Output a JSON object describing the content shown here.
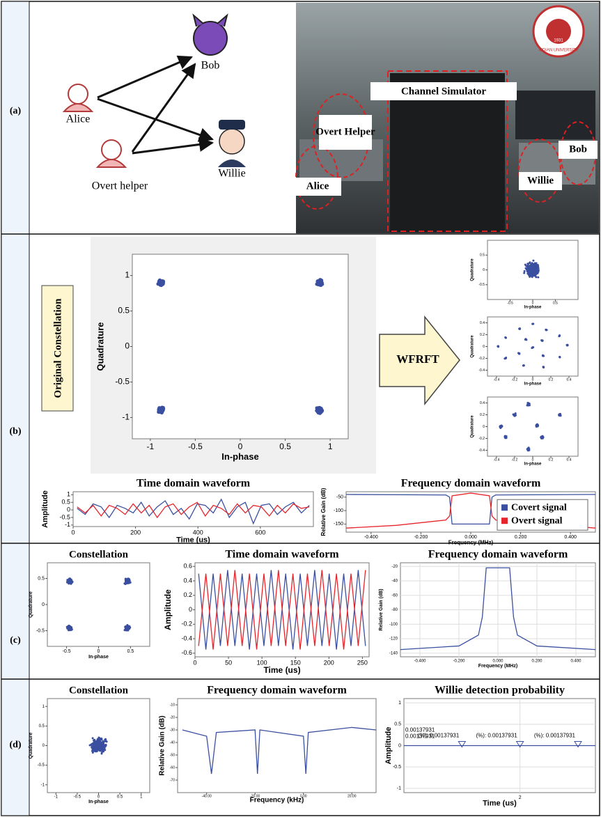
{
  "panel_labels": [
    "(a)",
    "(b)",
    "(c)",
    "(d)"
  ],
  "panel_a": {
    "nodes": [
      "Bob",
      "Alice",
      "Willie",
      "Overt helper"
    ],
    "photo_labels": [
      "Channel Simulator",
      "Overt Helper",
      "Alice",
      "Willie",
      "Bob"
    ],
    "logo": [
      "XIDIAN UNIVERSITY",
      "1931"
    ]
  },
  "panel_b": {
    "side_label": "Original Constellation",
    "arrow_label": "WFRFT",
    "charts": [
      {
        "type": "scatter",
        "xlabel": "In-phase",
        "ylabel": "Quadrature",
        "xlim": [
          -1.2,
          1.2
        ],
        "ylim": [
          -1.3,
          1.3
        ],
        "xticks": [
          -1,
          -0.5,
          0,
          0.5,
          1
        ],
        "yticks": [
          -1,
          -0.5,
          0,
          0.5,
          1
        ],
        "color": "#3a4fa0",
        "centers": [
          [
            -0.88,
            0.9
          ],
          [
            0.88,
            0.9
          ],
          [
            -0.88,
            -0.9
          ],
          [
            0.88,
            -0.9
          ]
        ]
      },
      {
        "type": "scatter",
        "xlabel": "In-phase",
        "ylabel": "Quadrature",
        "xlim": [
          -1,
          1
        ],
        "ylim": [
          -1,
          1
        ],
        "xticks": [
          -0.5,
          0,
          0.5
        ],
        "yticks": [
          -0.5,
          0,
          0.5
        ],
        "color": "#3a4fa0",
        "centers": [
          [
            0,
            0
          ]
        ]
      },
      {
        "type": "scatter",
        "xlabel": "In-phase",
        "ylabel": "Quadrature",
        "xlim": [
          -0.5,
          0.5
        ],
        "ylim": [
          -0.5,
          0.5
        ],
        "xticks": [
          -0.4,
          -0.2,
          0,
          0.2,
          0.4
        ],
        "yticks": [
          -0.4,
          -0.2,
          0,
          0.2,
          0.4
        ],
        "color": "#3a4fa0",
        "centers": [
          [
            0,
            0.38
          ],
          [
            -0.15,
            0.3
          ],
          [
            0.15,
            0.28
          ],
          [
            -0.3,
            0.15
          ],
          [
            0.3,
            0.18
          ],
          [
            -0.08,
            0.12
          ],
          [
            0.1,
            0.1
          ],
          [
            -0.38,
            0
          ],
          [
            0.38,
            0.02
          ],
          [
            0,
            -0.02
          ],
          [
            -0.15,
            -0.12
          ],
          [
            0.12,
            -0.15
          ],
          [
            -0.3,
            -0.2
          ],
          [
            0.3,
            -0.18
          ],
          [
            -0.1,
            -0.32
          ],
          [
            0.12,
            -0.35
          ]
        ]
      },
      {
        "type": "scatter",
        "xlabel": "In-phase",
        "ylabel": "Quadrature",
        "xlim": [
          -0.5,
          0.5
        ],
        "ylim": [
          -0.5,
          0.5
        ],
        "xticks": [
          -0.4,
          -0.2,
          0,
          0.2,
          0.4
        ],
        "yticks": [
          -0.4,
          -0.2,
          0,
          0.2,
          0.4
        ],
        "color": "#3a4fa0",
        "centers": [
          [
            -0.05,
            0.38
          ],
          [
            -0.2,
            0.2
          ],
          [
            0.3,
            0.2
          ],
          [
            -0.35,
            0
          ],
          [
            0.05,
            0.02
          ],
          [
            -0.3,
            -0.18
          ],
          [
            0.1,
            -0.18
          ],
          [
            -0.05,
            -0.38
          ]
        ]
      },
      {
        "type": "line",
        "title": "Time domain waveform",
        "xlabel": "Time  (us)",
        "ylabel": "Amplitude",
        "xlim": [
          0,
          770
        ],
        "ylim": [
          -1.1,
          1.2
        ],
        "xticks": [
          0,
          200,
          400,
          600
        ],
        "yticks": [
          -1,
          -0.5,
          0,
          0.5,
          1
        ],
        "series": [
          {
            "color": "#3a4fa0",
            "values": [
              0.1,
              -0.3,
              0.4,
              0.2,
              -0.5,
              0.3,
              0.1,
              -0.2,
              0.5,
              -0.4,
              0.2,
              0.6,
              -0.3,
              0.1,
              -0.6,
              0.4,
              0.3,
              -0.2,
              0.7,
              -0.5,
              0.2,
              0.5,
              -0.9,
              0.3,
              0.4,
              -0.3,
              0.2,
              0.5,
              -0.2,
              0.3
            ]
          },
          {
            "color": "#e8242b",
            "values": [
              0.2,
              -0.2,
              0.3,
              -0.4,
              0.3,
              0.1,
              -0.3,
              0.4,
              -0.2,
              0.3,
              -0.5,
              0.2,
              0.4,
              -0.3,
              0.2,
              0.5,
              -0.4,
              0.3,
              0.1,
              -0.3,
              0.4,
              -0.2,
              0.3,
              0.2,
              -0.4,
              0.3,
              -0.2,
              0.4,
              0.1,
              0.2
            ]
          }
        ]
      },
      {
        "type": "line",
        "title": "Frequency domain waveform",
        "xlabel": "Frequency (MHz)",
        "ylabel": "Relative Gain (dB)",
        "xlim": [
          -0.5,
          0.5
        ],
        "ylim": [
          -180,
          -30
        ],
        "xticks": [
          {
            "value": -0.4,
            "label": "-0.400"
          },
          {
            "value": -0.2,
            "label": "-0.200"
          },
          {
            "value": 0,
            "label": "0.000"
          },
          {
            "value": 0.2,
            "label": "0.200"
          },
          {
            "value": 0.4,
            "label": "0.400"
          }
        ],
        "yticks": [
          -50,
          -100,
          -150
        ],
        "legend": "right",
        "series": [
          {
            "name": "Covert signal",
            "color": "#3a4fa0",
            "x": [
              -0.5,
              -0.1,
              -0.085,
              -0.075,
              0.075,
              0.085,
              0.1,
              0.5
            ],
            "values": [
              -40,
              -42,
              -50,
              -150,
              -150,
              -50,
              -42,
              -40
            ]
          },
          {
            "name": "Overt signal",
            "color": "#e8242b",
            "x": [
              -0.5,
              -0.3,
              -0.1,
              -0.085,
              -0.075,
              0,
              0.075,
              0.085,
              0.1,
              0.3,
              0.5
            ],
            "values": [
              -165,
              -155,
              -135,
              -120,
              -45,
              -35,
              -45,
              -120,
              -135,
              -150,
              -165
            ]
          }
        ]
      }
    ]
  },
  "panel_c": {
    "charts": [
      {
        "type": "scatter",
        "title": "Constellation",
        "xlabel": "In-phase",
        "ylabel": "Quadrature",
        "xlim": [
          -0.8,
          0.8
        ],
        "ylim": [
          -0.8,
          0.8
        ],
        "xticks": [
          -0.5,
          0,
          0.5
        ],
        "yticks": [
          -0.5,
          0,
          0.5
        ],
        "color": "#3a4fa0",
        "centers": [
          [
            -0.45,
            0.45
          ],
          [
            0.45,
            0.45
          ],
          [
            -0.45,
            -0.45
          ],
          [
            0.45,
            -0.45
          ]
        ]
      },
      {
        "type": "line",
        "title": "Time domain waveform",
        "xlabel": "Time  (us)",
        "ylabel": "Amplitude",
        "xlim": [
          0,
          260
        ],
        "ylim": [
          -0.65,
          0.65
        ],
        "xticks": [
          0,
          50,
          100,
          150,
          200,
          250
        ],
        "yticks": [
          -0.6,
          -0.4,
          -0.2,
          0,
          0.2,
          0.4,
          0.6
        ],
        "series": [
          {
            "color": "#3a4fa0",
            "values": [
              0.5,
              -0.55,
              0.5,
              -0.5,
              0.55,
              -0.5,
              0.5,
              -0.55,
              0.5,
              -0.5,
              0.55,
              -0.5,
              0.5,
              -0.55,
              0.5,
              -0.5,
              0.55,
              -0.5,
              0.5,
              -0.55,
              0.5,
              -0.5,
              0.55,
              -0.5
            ]
          },
          {
            "color": "#e8242b",
            "values": [
              -0.5,
              0.5,
              -0.55,
              0.5,
              -0.5,
              0.55,
              -0.5,
              0.5,
              -0.55,
              0.5,
              -0.5,
              0.55,
              -0.5,
              0.5,
              -0.55,
              0.5,
              -0.5,
              0.55,
              -0.5,
              0.5,
              -0.55,
              0.5,
              -0.5,
              0.55
            ]
          }
        ]
      },
      {
        "type": "line",
        "title": "Frequency domain waveform",
        "xlabel": "Frequency  (MHz)",
        "ylabel": "Relative Gain (dB)",
        "xlim": [
          -0.5,
          0.5
        ],
        "ylim": [
          -145,
          -15
        ],
        "grid": true,
        "xticks": [
          {
            "value": -0.4,
            "label": "-0.400"
          },
          {
            "value": -0.2,
            "label": "-0.200"
          },
          {
            "value": 0,
            "label": "0.000"
          },
          {
            "value": 0.2,
            "label": "0.200"
          },
          {
            "value": 0.4,
            "label": "0.400"
          }
        ],
        "yticks": [
          -20,
          -40,
          -60,
          -80,
          -100,
          -120,
          -140
        ],
        "series": [
          {
            "color": "#3a4fa0",
            "x": [
              -0.5,
              -0.2,
              -0.1,
              -0.08,
              -0.06,
              0.06,
              0.08,
              0.1,
              0.2,
              0.5
            ],
            "values": [
              -135,
              -130,
              -115,
              -90,
              -22,
              -22,
              -90,
              -115,
              -130,
              -135
            ]
          }
        ]
      }
    ]
  },
  "panel_d": {
    "charts": [
      {
        "type": "scatter",
        "title": "Constellation",
        "xlabel": "In-phase",
        "ylabel": "Quadrature",
        "xlim": [
          -1.2,
          1.2
        ],
        "ylim": [
          -1.2,
          1.2
        ],
        "xticks": [
          -1,
          -0.5,
          0,
          0.5,
          1
        ],
        "yticks": [
          -1,
          -0.5,
          0,
          0.5,
          1
        ],
        "color": "#3a4fa0",
        "centers": [
          [
            0,
            0
          ]
        ]
      },
      {
        "type": "line",
        "title": "Frequency domain waveform",
        "xlabel": "Frequency  (kHz)",
        "ylabel": "Relative Gain (dB)",
        "xlim": [
          -52,
          30
        ],
        "ylim": [
          -80,
          -5
        ],
        "xticks": [
          {
            "value": -40,
            "label": "-40.00"
          },
          {
            "value": -20,
            "label": "-20.00"
          },
          {
            "value": 0,
            "label": "0.00"
          },
          {
            "value": 20,
            "label": "20.00"
          }
        ],
        "yticks": [
          -10,
          -20,
          -30,
          -40,
          -50,
          -60,
          -70
        ],
        "series": [
          {
            "color": "#3a4fa0",
            "x": [
              -50,
              -40,
              -38,
              -36,
              -20,
              -19,
              -18,
              0,
              1,
              2,
              20,
              30
            ],
            "values": [
              -30,
              -35,
              -65,
              -32,
              -30,
              -65,
              -30,
              -35,
              -65,
              -32,
              -28,
              -30
            ]
          }
        ]
      },
      {
        "type": "line",
        "title": "Willie detection probability",
        "xlabel": "Time  (us)",
        "ylabel": "Amplitude",
        "xlim": [
          0,
          3.3
        ],
        "ylim": [
          -1.1,
          1.1
        ],
        "xticks": [
          2
        ],
        "yticks": [
          1,
          0.5,
          0,
          -0.5,
          -1
        ],
        "grid": true,
        "series": [
          {
            "color": "#3a4fa0",
            "marker": true,
            "x": [
              1,
              2,
              3
            ],
            "values": [
              0,
              0,
              0
            ]
          }
        ],
        "annotations": [
          "(%): 0.00137931",
          "(%): 0.00137931",
          "(%): 0.00137931"
        ],
        "left_labels": [
          "0.00137931",
          "0.00137931"
        ]
      }
    ]
  }
}
